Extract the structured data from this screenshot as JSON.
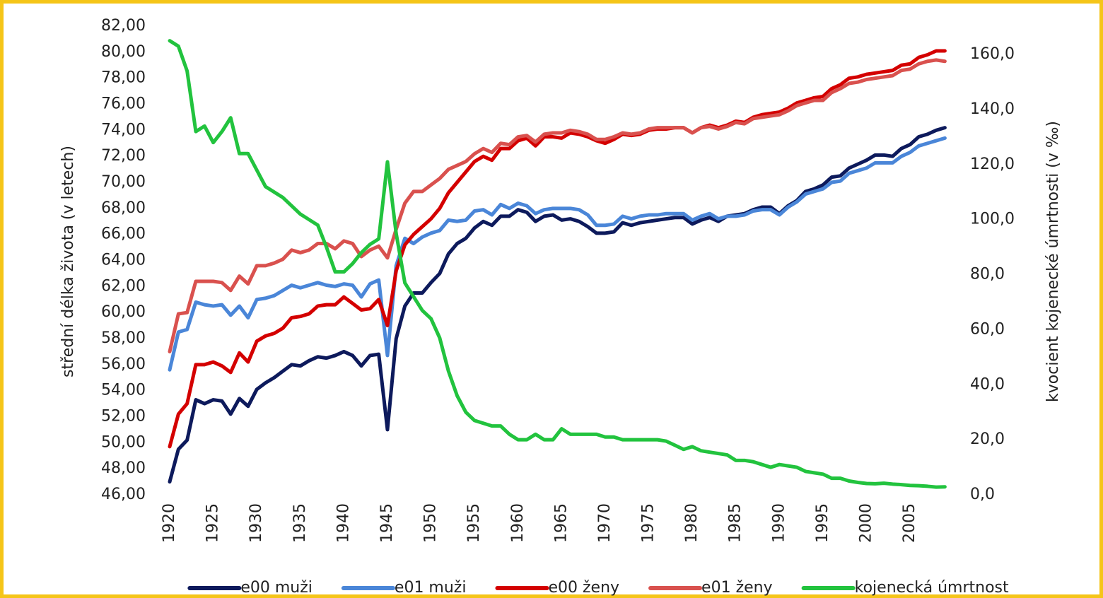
{
  "chart_data": {
    "type": "line",
    "y_label": "střední délka života (v letech)",
    "y2_label": "kvocient kojenecké úmrtnosti (v ‰)",
    "x": [
      1920,
      1921,
      1922,
      1923,
      1924,
      1925,
      1926,
      1927,
      1928,
      1929,
      1930,
      1931,
      1932,
      1933,
      1934,
      1935,
      1936,
      1937,
      1938,
      1939,
      1940,
      1941,
      1942,
      1943,
      1944,
      1945,
      1946,
      1947,
      1948,
      1949,
      1950,
      1951,
      1952,
      1953,
      1954,
      1955,
      1956,
      1957,
      1958,
      1959,
      1960,
      1961,
      1962,
      1963,
      1964,
      1965,
      1966,
      1967,
      1968,
      1969,
      1970,
      1971,
      1972,
      1973,
      1974,
      1975,
      1976,
      1977,
      1978,
      1979,
      1980,
      1981,
      1982,
      1983,
      1984,
      1985,
      1986,
      1987,
      1988,
      1989,
      1990,
      1991,
      1992,
      1993,
      1994,
      1995,
      1996,
      1997,
      1998,
      1999,
      2000,
      2001,
      2002,
      2003,
      2004,
      2005,
      2006,
      2007,
      2008,
      2009
    ],
    "xlim": [
      1919.35,
      2009.7
    ],
    "xticks": [
      1920,
      1925,
      1930,
      1935,
      1940,
      1945,
      1950,
      1955,
      1960,
      1965,
      1970,
      1975,
      1980,
      1985,
      1990,
      1995,
      2000,
      2005
    ],
    "ylim": [
      46,
      82
    ],
    "yticks": [
      {
        "value": 46,
        "label": "46,00"
      },
      {
        "value": 48,
        "label": "48,00"
      },
      {
        "value": 50,
        "label": "50,00"
      },
      {
        "value": 52,
        "label": "52,00"
      },
      {
        "value": 54,
        "label": "54,00"
      },
      {
        "value": 56,
        "label": "56,00"
      },
      {
        "value": 58,
        "label": "58,00"
      },
      {
        "value": 60,
        "label": "60,00"
      },
      {
        "value": 62,
        "label": "62,00"
      },
      {
        "value": 64,
        "label": "64,00"
      },
      {
        "value": 66,
        "label": "66,00"
      },
      {
        "value": 68,
        "label": "68,00"
      },
      {
        "value": 70,
        "label": "70,00"
      },
      {
        "value": 72,
        "label": "72,00"
      },
      {
        "value": 74,
        "label": "74,00"
      },
      {
        "value": 76,
        "label": "76,00"
      },
      {
        "value": 78,
        "label": "78,00"
      },
      {
        "value": 80,
        "label": "80,00"
      },
      {
        "value": 82,
        "label": "82,00"
      }
    ],
    "y2lim": [
      0,
      170.3
    ],
    "y2ticks": [
      {
        "value": 0,
        "label": "0,0"
      },
      {
        "value": 20,
        "label": "20,0"
      },
      {
        "value": 40,
        "label": "40,0"
      },
      {
        "value": 60,
        "label": "60,0"
      },
      {
        "value": 80,
        "label": "80,0"
      },
      {
        "value": 100,
        "label": "100,0"
      },
      {
        "value": 120,
        "label": "120,0"
      },
      {
        "value": 140,
        "label": "140,0"
      },
      {
        "value": 160,
        "label": "160,0"
      }
    ],
    "grid": false,
    "legend": "bottom",
    "series": [
      {
        "name": "e00 muži",
        "color": "#0d1a5c",
        "values": [
          47.0,
          49.5,
          50.2,
          53.3,
          53.0,
          53.3,
          53.2,
          52.2,
          53.4,
          52.8,
          54.1,
          54.6,
          55.0,
          55.5,
          56.0,
          55.9,
          56.3,
          56.6,
          56.5,
          56.7,
          57.0,
          56.7,
          55.9,
          56.7,
          56.8,
          51.0,
          58.0,
          60.5,
          61.5,
          61.5,
          62.3,
          63.0,
          64.5,
          65.3,
          65.7,
          66.5,
          67.0,
          66.7,
          67.4,
          67.4,
          67.9,
          67.7,
          67.0,
          67.4,
          67.5,
          67.1,
          67.2,
          67.0,
          66.6,
          66.1,
          66.1,
          66.2,
          66.9,
          66.7,
          66.9,
          67.0,
          67.1,
          67.2,
          67.3,
          67.3,
          66.8,
          67.1,
          67.3,
          67.0,
          67.4,
          67.5,
          67.6,
          67.9,
          68.1,
          68.1,
          67.6,
          68.2,
          68.6,
          69.3,
          69.5,
          69.8,
          70.4,
          70.5,
          71.1,
          71.4,
          71.7,
          72.1,
          72.1,
          72.0,
          72.6,
          72.9,
          73.5,
          73.7,
          74.0,
          74.2
        ]
      },
      {
        "name": "e01 muži",
        "color": "#4a86d8",
        "values": [
          55.6,
          58.5,
          58.7,
          60.8,
          60.6,
          60.5,
          60.6,
          59.8,
          60.5,
          59.6,
          61.0,
          61.1,
          61.3,
          61.7,
          62.1,
          61.9,
          62.1,
          62.3,
          62.1,
          62.0,
          62.2,
          62.1,
          61.2,
          62.2,
          62.5,
          56.7,
          63.6,
          65.7,
          65.3,
          65.8,
          66.1,
          66.3,
          67.1,
          67.0,
          67.1,
          67.8,
          67.9,
          67.5,
          68.3,
          68.0,
          68.4,
          68.2,
          67.6,
          67.9,
          68.0,
          68.0,
          68.0,
          67.9,
          67.5,
          66.7,
          66.7,
          66.8,
          67.4,
          67.2,
          67.4,
          67.5,
          67.5,
          67.6,
          67.6,
          67.6,
          67.1,
          67.4,
          67.6,
          67.2,
          67.4,
          67.4,
          67.5,
          67.8,
          67.9,
          67.9,
          67.5,
          68.1,
          68.5,
          69.1,
          69.3,
          69.5,
          70.0,
          70.1,
          70.7,
          70.9,
          71.1,
          71.5,
          71.5,
          71.5,
          72.0,
          72.3,
          72.8,
          73.0,
          73.2,
          73.4
        ]
      },
      {
        "name": "e00 ženy",
        "color": "#d40000",
        "values": [
          49.7,
          52.2,
          53.0,
          56.0,
          56.0,
          56.2,
          55.9,
          55.4,
          56.9,
          56.2,
          57.8,
          58.2,
          58.4,
          58.8,
          59.6,
          59.7,
          59.9,
          60.5,
          60.6,
          60.6,
          61.2,
          60.7,
          60.2,
          60.3,
          61.0,
          59.0,
          63.2,
          65.2,
          66.0,
          66.6,
          67.2,
          68.0,
          69.2,
          70.0,
          70.8,
          71.6,
          72.0,
          71.7,
          72.6,
          72.6,
          73.2,
          73.4,
          72.8,
          73.5,
          73.5,
          73.4,
          73.8,
          73.7,
          73.5,
          73.2,
          73.0,
          73.3,
          73.7,
          73.6,
          73.7,
          74.0,
          74.1,
          74.1,
          74.2,
          74.2,
          73.8,
          74.2,
          74.4,
          74.2,
          74.4,
          74.7,
          74.6,
          75.0,
          75.2,
          75.3,
          75.4,
          75.7,
          76.1,
          76.3,
          76.5,
          76.6,
          77.2,
          77.5,
          78.0,
          78.1,
          78.3,
          78.4,
          78.5,
          78.6,
          79.0,
          79.1,
          79.6,
          79.8,
          80.1,
          80.1
        ]
      },
      {
        "name": "e01 ženy",
        "color": "#d9514e",
        "values": [
          57.0,
          59.9,
          60.0,
          62.4,
          62.4,
          62.4,
          62.3,
          61.7,
          62.8,
          62.2,
          63.6,
          63.6,
          63.8,
          64.1,
          64.8,
          64.6,
          64.8,
          65.3,
          65.3,
          64.9,
          65.5,
          65.3,
          64.3,
          64.8,
          65.1,
          64.2,
          66.4,
          68.4,
          69.3,
          69.3,
          69.8,
          70.3,
          71.0,
          71.3,
          71.6,
          72.2,
          72.6,
          72.3,
          73.0,
          72.9,
          73.5,
          73.6,
          73.1,
          73.7,
          73.8,
          73.8,
          74.0,
          73.9,
          73.7,
          73.3,
          73.3,
          73.5,
          73.8,
          73.7,
          73.8,
          74.1,
          74.2,
          74.2,
          74.2,
          74.2,
          73.8,
          74.2,
          74.3,
          74.1,
          74.3,
          74.6,
          74.5,
          74.9,
          75.0,
          75.1,
          75.2,
          75.5,
          75.9,
          76.1,
          76.3,
          76.3,
          76.9,
          77.2,
          77.6,
          77.7,
          77.9,
          78.0,
          78.1,
          78.2,
          78.6,
          78.7,
          79.1,
          79.3,
          79.4,
          79.3
        ]
      },
      {
        "name": "kojenecká úmrtnost",
        "color": "#22c33e",
        "axis": "y2",
        "values": [
          165,
          163,
          154,
          132,
          134,
          128,
          132,
          137,
          124,
          124,
          118,
          112,
          110,
          108,
          105,
          102,
          100,
          98,
          90,
          81,
          81,
          84,
          88,
          91,
          93,
          121,
          95,
          77,
          72,
          67,
          64,
          57,
          45,
          36,
          30,
          27,
          26,
          25,
          25,
          22,
          20,
          20,
          22,
          20,
          20,
          24,
          22,
          22,
          22,
          22,
          21,
          21,
          20,
          20,
          20,
          20,
          20,
          19.5,
          18,
          16.5,
          17.5,
          16,
          15.5,
          15,
          14.5,
          12.5,
          12.5,
          12,
          11,
          10,
          11,
          10.5,
          10,
          8.5,
          8,
          7.5,
          6,
          6,
          5,
          4.5,
          4.1,
          4.0,
          4.2,
          3.9,
          3.7,
          3.4,
          3.3,
          3.1,
          2.8,
          2.9
        ]
      }
    ]
  }
}
